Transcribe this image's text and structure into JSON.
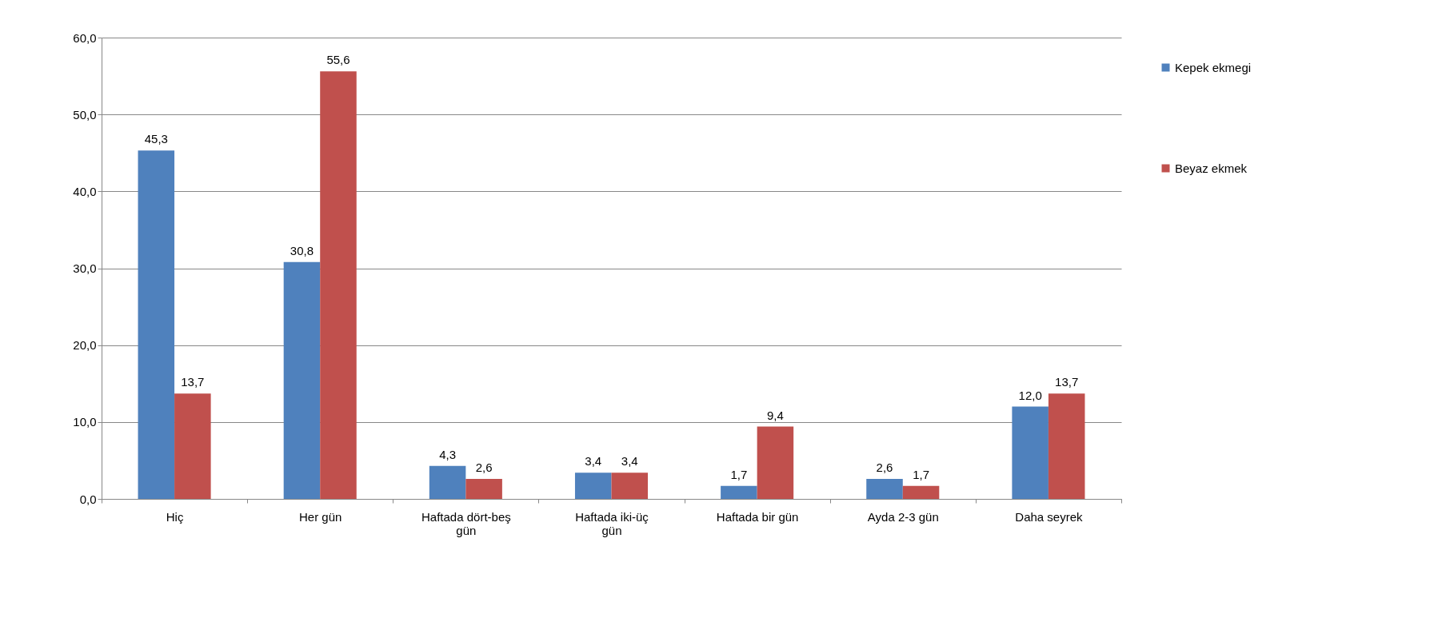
{
  "chart_data": {
    "type": "bar",
    "categories": [
      "Hiç",
      "Her gün",
      "Haftada dört-beş gün",
      "Haftada iki-üç gün",
      "Haftada bir gün",
      "Ayda 2-3 gün",
      "Daha seyrek"
    ],
    "series": [
      {
        "name": "Kepek ekmegi",
        "color": "#4f81bd",
        "values": [
          45.3,
          30.8,
          4.3,
          3.4,
          1.7,
          2.6,
          12.0
        ],
        "value_labels": [
          "45,3",
          "30,8",
          "4,3",
          "3,4",
          "1,7",
          "2,6",
          "12,0"
        ]
      },
      {
        "name": "Beyaz ekmek",
        "color": "#c0504d",
        "values": [
          13.7,
          55.6,
          2.6,
          3.4,
          9.4,
          1.7,
          13.7
        ],
        "value_labels": [
          "13,7",
          "55,6",
          "2,6",
          "3,4",
          "9,4",
          "1,7",
          "13,7"
        ]
      }
    ],
    "ylim": [
      0,
      60
    ],
    "yticks": [
      {
        "value": 0,
        "label": "0,0"
      },
      {
        "value": 10,
        "label": "10,0"
      },
      {
        "value": 20,
        "label": "20,0"
      },
      {
        "value": 30,
        "label": "30,0"
      },
      {
        "value": 40,
        "label": "40,0"
      },
      {
        "value": 50,
        "label": "50,0"
      },
      {
        "value": 60,
        "label": "60,0"
      }
    ],
    "grid": "y",
    "legend": "right"
  }
}
